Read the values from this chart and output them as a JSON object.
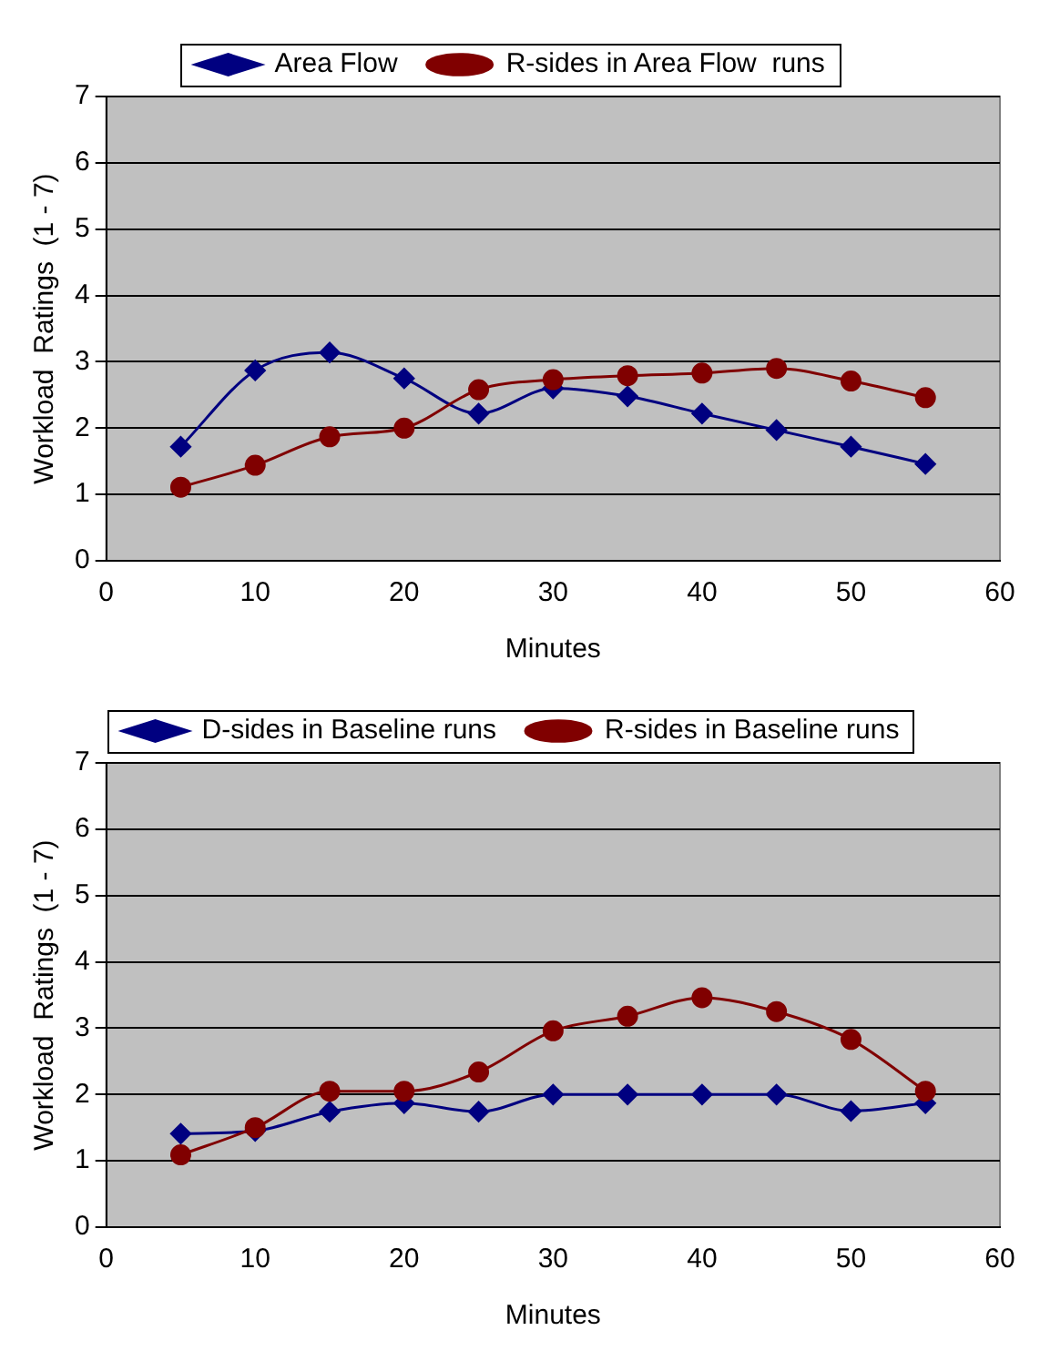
{
  "chart_data": [
    {
      "type": "line",
      "xlabel": "Minutes",
      "ylabel": "Workload  Ratings  (1 - 7)",
      "xlim": [
        0,
        60
      ],
      "xticks": [
        0,
        10,
        20,
        30,
        40,
        50,
        60
      ],
      "ylim": [
        0,
        7
      ],
      "yticks": [
        0,
        1,
        2,
        3,
        4,
        5,
        6,
        7
      ],
      "grid": "y",
      "legend": "top",
      "line_style": "solid",
      "x": [
        5,
        10,
        15,
        20,
        25,
        30,
        35,
        40,
        45,
        50,
        55
      ],
      "series": [
        {
          "name": "Area Flow",
          "color": "#000080",
          "marker": "diamond",
          "values": [
            1.72,
            2.87,
            3.14,
            2.75,
            2.22,
            2.6,
            2.48,
            2.22,
            1.97,
            1.72,
            1.46
          ]
        },
        {
          "name": "R-sides in Area Flow  runs",
          "color": "#800000",
          "marker": "circle",
          "values": [
            1.11,
            1.44,
            1.87,
            2.0,
            2.58,
            2.73,
            2.79,
            2.83,
            2.9,
            2.71,
            2.46
          ]
        }
      ]
    },
    {
      "type": "line",
      "xlabel": "Minutes",
      "ylabel": "Workload  Ratings  (1 - 7)",
      "xlim": [
        0,
        60
      ],
      "xticks": [
        0,
        10,
        20,
        30,
        40,
        50,
        60
      ],
      "ylim": [
        0,
        7
      ],
      "yticks": [
        0,
        1,
        2,
        3,
        4,
        5,
        6,
        7
      ],
      "grid": "y",
      "legend": "top",
      "line_style": "solid",
      "x": [
        5,
        10,
        15,
        20,
        25,
        30,
        35,
        40,
        45,
        50,
        55
      ],
      "series": [
        {
          "name": "D-sides in Baseline runs",
          "color": "#000080",
          "marker": "diamond",
          "values": [
            1.41,
            1.45,
            1.74,
            1.87,
            1.74,
            2.0,
            2.0,
            2.0,
            2.0,
            1.75,
            1.87
          ]
        },
        {
          "name": "R-sides in Baseline runs",
          "color": "#800000",
          "marker": "circle",
          "values": [
            1.09,
            1.5,
            2.05,
            2.05,
            2.34,
            2.96,
            3.18,
            3.46,
            3.25,
            2.83,
            2.05
          ]
        }
      ]
    }
  ]
}
